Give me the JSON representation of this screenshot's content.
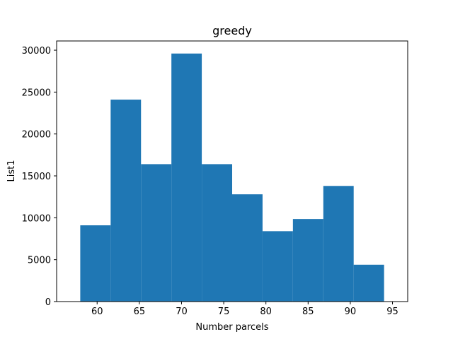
{
  "chart_data": {
    "type": "bar",
    "title": "greedy",
    "xlabel": "Number parcels",
    "ylabel": "List1",
    "bin_edges": [
      58,
      61.6,
      65.2,
      68.8,
      72.4,
      76,
      79.6,
      83.2,
      86.8,
      90.4,
      94
    ],
    "values": [
      9100,
      24100,
      16400,
      29600,
      16400,
      12800,
      8400,
      9850,
      13800,
      4400
    ],
    "xlim": [
      55.2,
      96.8
    ],
    "ylim": [
      0,
      31100
    ],
    "xticks": [
      60,
      65,
      70,
      75,
      80,
      85,
      90,
      95
    ],
    "yticks": [
      0,
      5000,
      10000,
      15000,
      20000,
      25000,
      30000
    ],
    "bar_color": "#1f77b4",
    "grid": false
  }
}
